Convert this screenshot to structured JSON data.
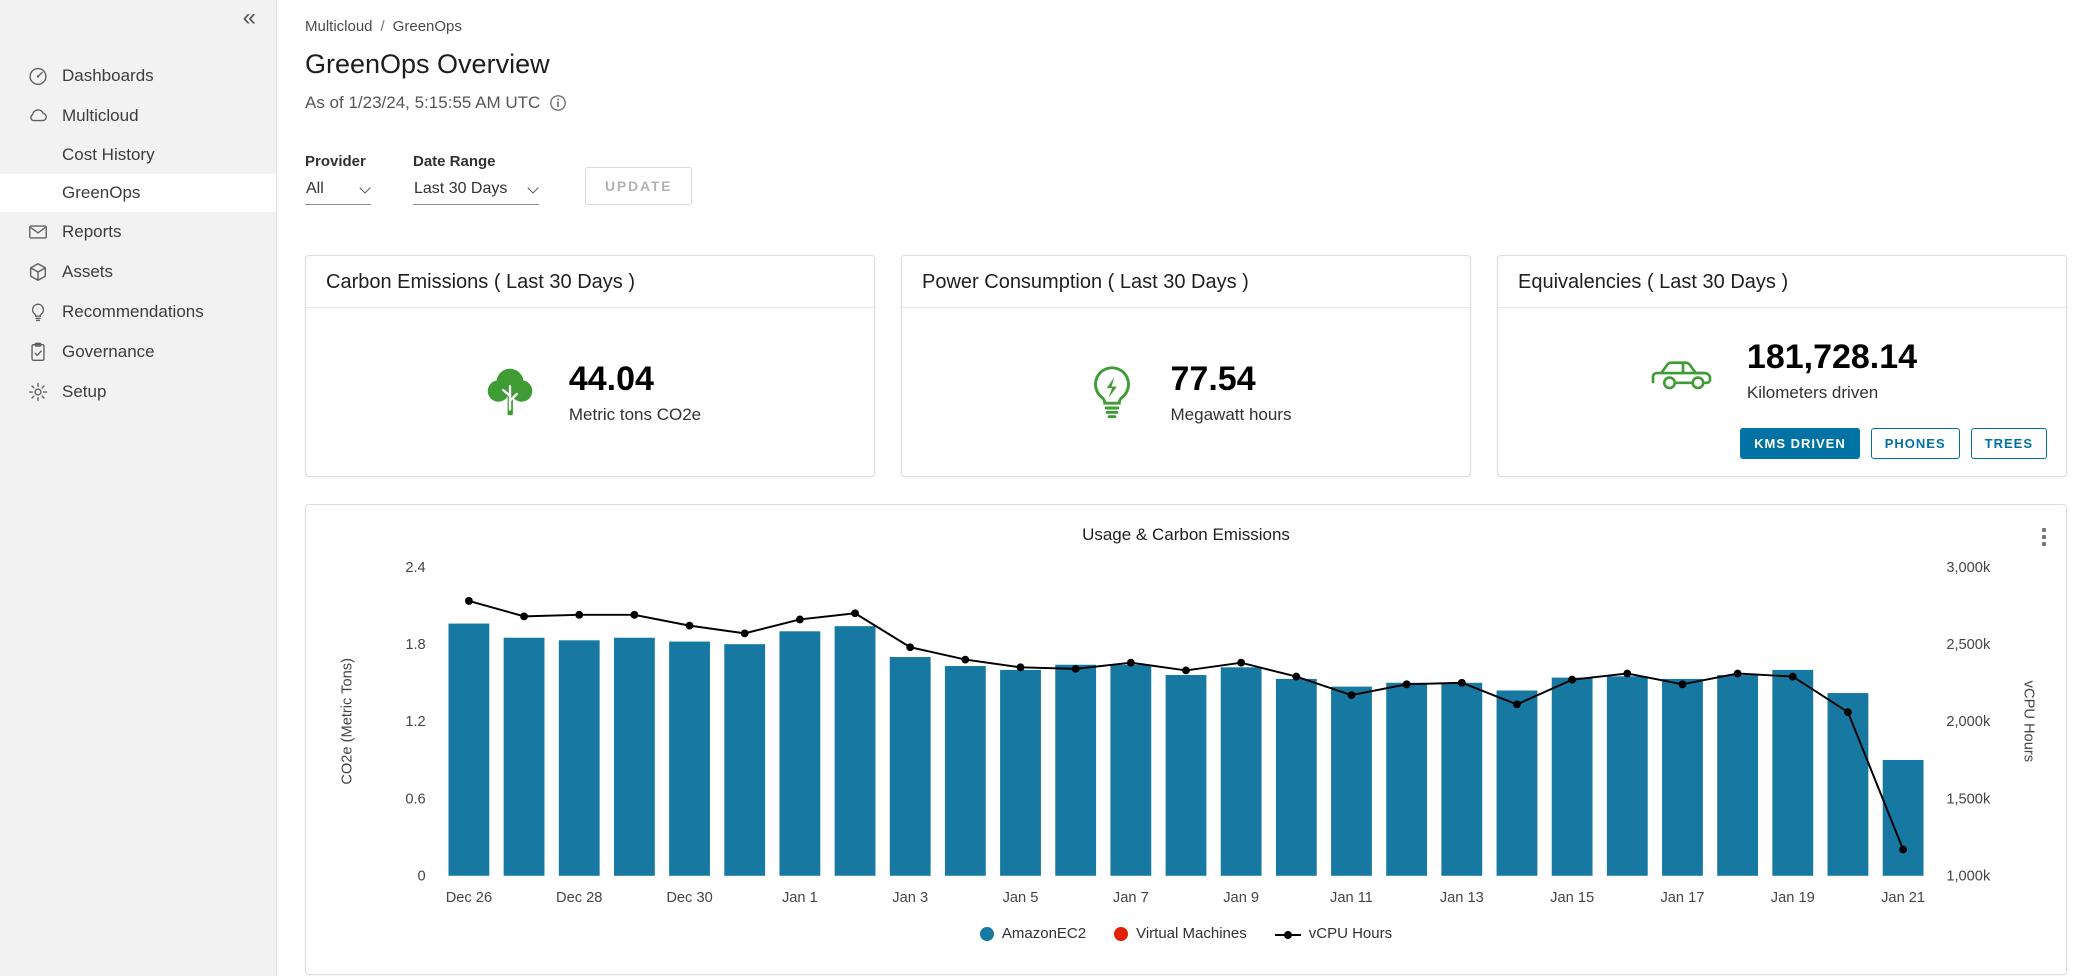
{
  "sidebar": {
    "collapse_icon": "«",
    "items": [
      {
        "label": "Dashboards",
        "icon": "gauge-icon",
        "type": "top"
      },
      {
        "label": "Multicloud",
        "icon": "cloud-icon",
        "type": "top"
      },
      {
        "label": "Cost History",
        "type": "sub",
        "active": false
      },
      {
        "label": "GreenOps",
        "type": "sub",
        "active": true
      },
      {
        "label": "Reports",
        "icon": "envelope-icon",
        "type": "top"
      },
      {
        "label": "Assets",
        "icon": "box-icon",
        "type": "top"
      },
      {
        "label": "Recommendations",
        "icon": "lightbulb-icon",
        "type": "top"
      },
      {
        "label": "Governance",
        "icon": "clipboard-check-icon",
        "type": "top"
      },
      {
        "label": "Setup",
        "icon": "gear-icon",
        "type": "top"
      }
    ]
  },
  "breadcrumb": {
    "items": [
      "Multicloud",
      "GreenOps"
    ],
    "separator": "/"
  },
  "header": {
    "title": "GreenOps Overview",
    "as_of": "As of 1/23/24, 5:15:55 AM UTC",
    "info_icon": "info-icon"
  },
  "filters": {
    "provider_label": "Provider",
    "provider_value": "All",
    "date_range_label": "Date Range",
    "date_range_value": "Last 30 Days",
    "update_label": "UPDATE"
  },
  "cards": {
    "carbon": {
      "title": "Carbon Emissions ( Last 30 Days )",
      "icon": "tree-icon",
      "value": "44.04",
      "unit": "Metric tons CO2e"
    },
    "power": {
      "title": "Power Consumption ( Last 30 Days )",
      "icon": "lightbulb-energy-icon",
      "value": "77.54",
      "unit": "Megawatt hours"
    },
    "equivalencies": {
      "title": "Equivalencies ( Last 30 Days )",
      "icon": "car-icon",
      "value": "181,728.14",
      "unit": "Kilometers driven",
      "buttons": [
        {
          "label": "KMS DRIVEN",
          "active": true
        },
        {
          "label": "PHONES",
          "active": false
        },
        {
          "label": "TREES",
          "active": false
        }
      ]
    }
  },
  "colors": {
    "accent_blue": "#0072a3",
    "bar_blue": "#1779a2",
    "danger_red": "#e12200",
    "icon_green": "#3f9c35",
    "line_black": "#000000",
    "sidebar_bg": "#f2f2f2"
  },
  "chart_data": {
    "type": "bar",
    "subtype": "combo-bar-line",
    "title": "Usage & Carbon Emissions",
    "categories": [
      "Dec 26",
      "Dec 27",
      "Dec 28",
      "Dec 29",
      "Dec 30",
      "Dec 31",
      "Jan 1",
      "Jan 2",
      "Jan 3",
      "Jan 4",
      "Jan 5",
      "Jan 6",
      "Jan 7",
      "Jan 8",
      "Jan 9",
      "Jan 10",
      "Jan 11",
      "Jan 12",
      "Jan 13",
      "Jan 14",
      "Jan 15",
      "Jan 16",
      "Jan 17",
      "Jan 18",
      "Jan 19",
      "Jan 20",
      "Jan 21"
    ],
    "x_tick_every": 2,
    "left_axis": {
      "label": "CO2e (Metric Tons)",
      "min": 0,
      "max": 2.4,
      "ticks": [
        0,
        0.6,
        1.2,
        1.8,
        2.4
      ]
    },
    "right_axis": {
      "label": "vCPU Hours",
      "min": 1000,
      "max": 3000,
      "unit": "k",
      "tick_values": [
        1000,
        1500,
        2000,
        2500,
        3000
      ],
      "ticks": [
        "1,000k",
        "1,500k",
        "2,000k",
        "2,500k",
        "3,000k"
      ]
    },
    "series": [
      {
        "name": "AmazonEC2",
        "type": "bar",
        "axis": "left",
        "color": "#1779a2",
        "values": [
          1.96,
          1.85,
          1.83,
          1.85,
          1.82,
          1.8,
          1.9,
          1.94,
          1.7,
          1.63,
          1.6,
          1.64,
          1.64,
          1.56,
          1.62,
          1.53,
          1.47,
          1.5,
          1.5,
          1.44,
          1.54,
          1.55,
          1.53,
          1.56,
          1.6,
          1.42,
          0.9
        ]
      },
      {
        "name": "Virtual Machines",
        "type": "bar",
        "axis": "left",
        "color": "#e12200",
        "values": []
      },
      {
        "name": "vCPU Hours",
        "type": "line",
        "axis": "right",
        "color": "#000000",
        "values": [
          2780,
          2680,
          2690,
          2690,
          2620,
          2570,
          2660,
          2700,
          2480,
          2400,
          2350,
          2340,
          2380,
          2330,
          2380,
          2290,
          2170,
          2240,
          2250,
          2110,
          2270,
          2310,
          2240,
          2310,
          2290,
          2060,
          1170
        ]
      }
    ],
    "legend": [
      {
        "label": "AmazonEC2",
        "marker": "circle",
        "color": "#1779a2"
      },
      {
        "label": "Virtual Machines",
        "marker": "circle",
        "color": "#e12200"
      },
      {
        "label": "vCPU Hours",
        "marker": "line-dot",
        "color": "#000000"
      }
    ],
    "legend_position": "bottom",
    "grid": false
  }
}
